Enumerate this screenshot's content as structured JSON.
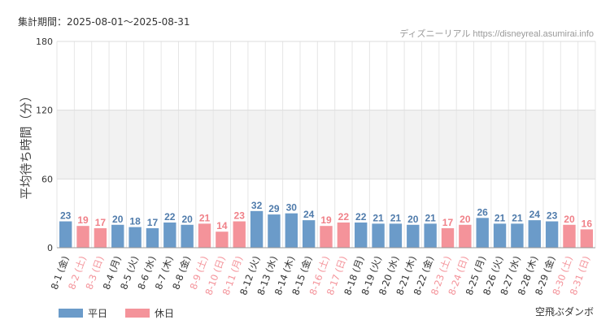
{
  "header": {
    "period": "集計期間：2025-08-01～2025-08-31",
    "source": "ディズニーリアル https://disneyreal.asumirai.info",
    "attraction": "空飛ぶダンボ"
  },
  "colors": {
    "weekday": "#6b9bc9",
    "holiday": "#f4939a",
    "weekday_label": "#4f7bab",
    "holiday_label": "#f08088"
  },
  "chart_data": {
    "type": "bar",
    "ylabel": "平均待ち時間（分）",
    "ylim": [
      0,
      180
    ],
    "yticks": [
      0,
      60,
      120,
      180
    ],
    "grid": true,
    "legend_position": "bottom-left",
    "categories": [
      "8-1 (金)",
      "8-2 (土)",
      "8-3 (日)",
      "8-4 (月)",
      "8-5 (火)",
      "8-6 (水)",
      "8-7 (木)",
      "8-8 (金)",
      "8-9 (土)",
      "8-10 (日)",
      "8-11 (月)",
      "8-12 (火)",
      "8-13 (水)",
      "8-14 (木)",
      "8-15 (金)",
      "8-16 (土)",
      "8-17 (日)",
      "8-18 (月)",
      "8-19 (火)",
      "8-20 (水)",
      "8-21 (木)",
      "8-22 (金)",
      "8-23 (土)",
      "8-24 (日)",
      "8-25 (月)",
      "8-26 (火)",
      "8-27 (水)",
      "8-28 (木)",
      "8-29 (金)",
      "8-30 (土)",
      "8-31 (日)"
    ],
    "values": [
      23,
      19,
      17,
      20,
      18,
      17,
      22,
      20,
      21,
      14,
      23,
      32,
      29,
      30,
      24,
      19,
      22,
      22,
      21,
      21,
      20,
      21,
      17,
      20,
      26,
      21,
      21,
      24,
      23,
      20,
      16
    ],
    "day_type": [
      "平日",
      "休日",
      "休日",
      "平日",
      "平日",
      "平日",
      "平日",
      "平日",
      "休日",
      "休日",
      "休日",
      "平日",
      "平日",
      "平日",
      "平日",
      "休日",
      "休日",
      "平日",
      "平日",
      "平日",
      "平日",
      "平日",
      "休日",
      "休日",
      "平日",
      "平日",
      "平日",
      "平日",
      "平日",
      "休日",
      "休日"
    ],
    "series": [
      {
        "name": "平日",
        "color": "#6b9bc9"
      },
      {
        "name": "休日",
        "color": "#f4939a"
      }
    ]
  }
}
